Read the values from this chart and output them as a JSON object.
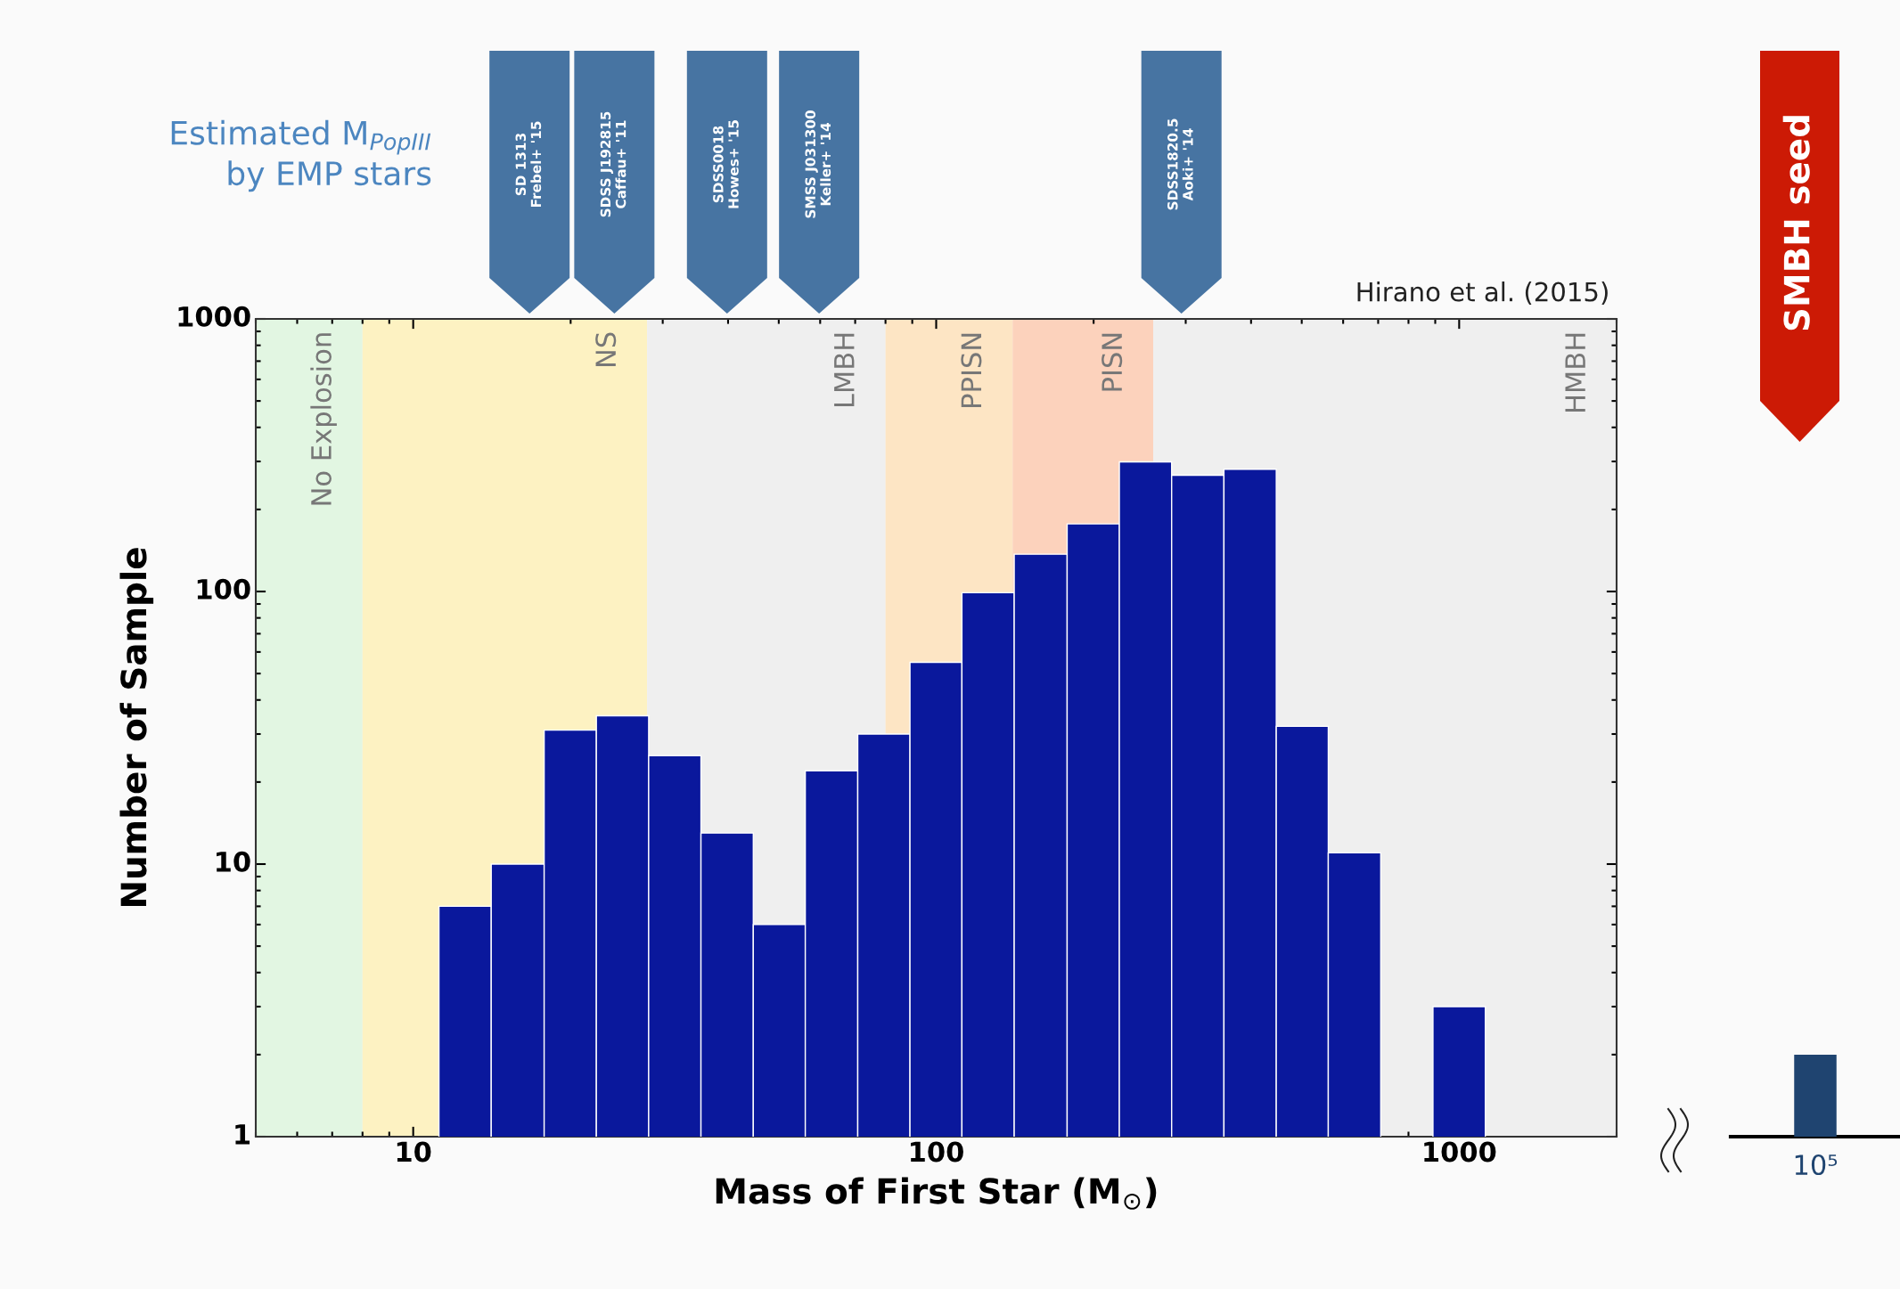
{
  "chart_data": [
    {
      "type": "histogram",
      "bins": [
        11.2,
        14.1,
        17.8,
        22.4,
        28.2,
        35.5,
        44.7,
        56.2,
        70.8,
        89.1,
        112,
        141,
        178,
        224,
        282,
        355,
        447,
        562,
        708,
        891,
        1122
      ],
      "values": [
        7,
        10,
        31,
        35,
        25,
        13,
        6,
        22,
        30,
        55,
        99,
        137,
        177,
        299,
        267,
        281,
        32,
        11,
        null,
        3
      ],
      "color": "#0a189c",
      "log": "xy",
      "xlim": [
        5,
        2000
      ],
      "ylim": [
        1,
        1000
      ],
      "xticks": [
        10,
        100,
        1000
      ],
      "yticks": [
        1,
        10,
        100,
        1000
      ],
      "xlabel": "Mass of First Star (M$_{⊙}$)",
      "ylabel": "Number of Sample",
      "bands": [
        {
          "axis": "x",
          "from": 5,
          "to": 8,
          "label": "No Explosion",
          "color": "#e2f6e2"
        },
        {
          "axis": "x",
          "from": 8,
          "to": 28,
          "label": "NS",
          "color": "#fdf2c2"
        },
        {
          "axis": "x",
          "from": 28,
          "to": 80,
          "label": "LMBH",
          "color": "#efefef"
        },
        {
          "axis": "x",
          "from": 80,
          "to": 140,
          "label": "PPISN",
          "color": "#fde5c4"
        },
        {
          "axis": "x",
          "from": 140,
          "to": 260,
          "label": "PISN",
          "color": "#fcd2bc"
        },
        {
          "axis": "x",
          "from": 260,
          "to": 2000,
          "label": "HMBH",
          "color": "#efefef"
        }
      ],
      "annotations": [
        "Estimated M$_{PopIII}$\nby EMP stars",
        "Hirano et al. (2015)",
        "SD 1313\nFrebel+ '15",
        "SDSS J192815\nCaffau+ '11",
        "SDSS0018\nHowes+ '15",
        "SMSS J031300\nKeller+ '14",
        "SDSS1820.5\nAoki+ '14"
      ]
    },
    {
      "type": "bar",
      "categories": [
        "10⁵"
      ],
      "values": [
        2
      ],
      "color": "#1f4470",
      "log": "y",
      "ylim": [
        1,
        1000
      ],
      "tick_labels": "x",
      "annotations": [
        "SMBH seed"
      ]
    }
  ]
}
